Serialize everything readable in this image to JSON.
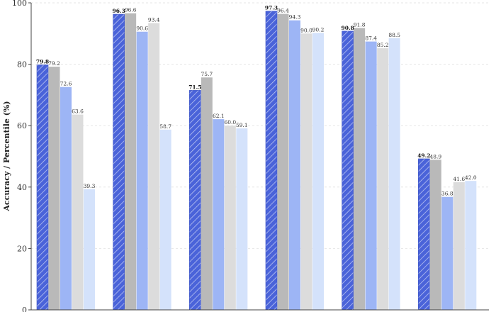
{
  "chart_data": {
    "type": "bar",
    "title": "",
    "xlabel": "",
    "ylabel": "Accuracy / Percentile (%)",
    "ylim": [
      0,
      100
    ],
    "yticks": [
      0,
      20,
      40,
      60,
      80,
      100
    ],
    "grid": true,
    "legend": "none",
    "categories": [
      "",
      "",
      "",
      "",
      "",
      ""
    ],
    "series": [
      {
        "values": [
          79.8,
          96.3,
          71.5,
          97.3,
          90.8,
          49.2
        ],
        "color": "#4a63d9",
        "pattern": "hatch",
        "label_bold": true
      },
      {
        "values": [
          79.2,
          96.6,
          75.7,
          96.4,
          91.8,
          48.9
        ],
        "color": "#b9b9b9"
      },
      {
        "values": [
          72.6,
          90.6,
          62.1,
          94.3,
          87.4,
          36.8
        ],
        "color": "#9db5f5"
      },
      {
        "values": [
          63.6,
          93.4,
          60.0,
          90.0,
          85.2,
          41.6
        ],
        "color": "#dcdcdc"
      },
      {
        "values": [
          39.3,
          58.7,
          59.1,
          90.2,
          88.5,
          42.0
        ],
        "color": "#d4e2fb"
      }
    ]
  }
}
